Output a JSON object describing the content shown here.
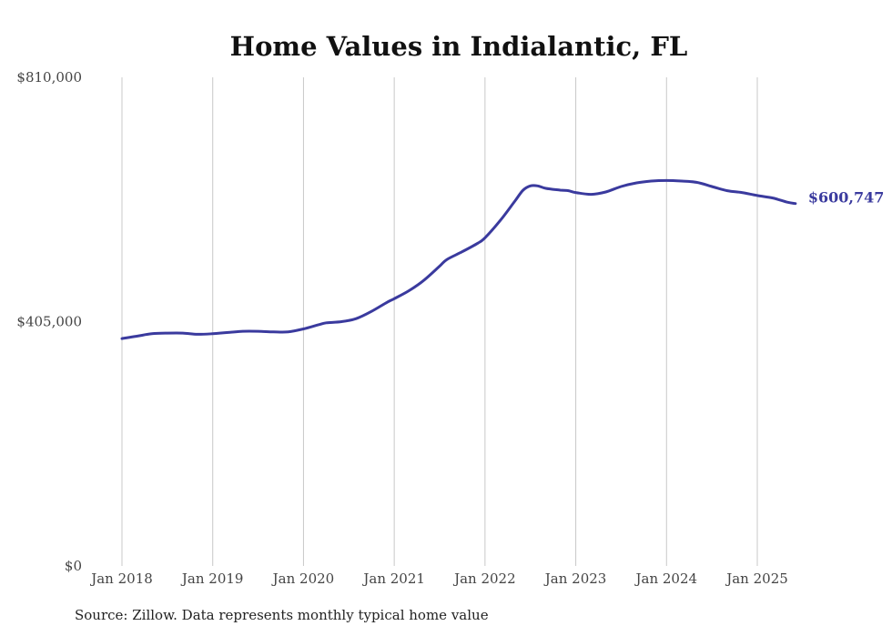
{
  "chart_data": {
    "type": "line",
    "title": "Home Values in Indialantic, FL",
    "xlabel": "",
    "ylabel": "",
    "ylim": [
      0,
      810000
    ],
    "y_ticks": [
      {
        "value": 0,
        "label": "$0"
      },
      {
        "value": 405000,
        "label": "$405,000"
      },
      {
        "value": 810000,
        "label": "$810,000"
      }
    ],
    "x_ticks": [
      {
        "value": 2018,
        "label": "Jan 2018"
      },
      {
        "value": 2019,
        "label": "Jan 2019"
      },
      {
        "value": 2020,
        "label": "Jan 2020"
      },
      {
        "value": 2021,
        "label": "Jan 2021"
      },
      {
        "value": 2022,
        "label": "Jan 2022"
      },
      {
        "value": 2023,
        "label": "Jan 2023"
      },
      {
        "value": 2024,
        "label": "Jan 2024"
      },
      {
        "value": 2025,
        "label": "Jan 2025"
      }
    ],
    "grid": "vertical",
    "series": [
      {
        "color": "#3a3a9e",
        "end_label": "$600,747",
        "points": [
          [
            2018.0,
            377000
          ],
          [
            2018.17,
            381000
          ],
          [
            2018.33,
            385000
          ],
          [
            2018.5,
            386000
          ],
          [
            2018.67,
            386000
          ],
          [
            2018.83,
            384000
          ],
          [
            2019.0,
            385000
          ],
          [
            2019.17,
            387000
          ],
          [
            2019.33,
            389000
          ],
          [
            2019.5,
            389000
          ],
          [
            2019.67,
            388000
          ],
          [
            2019.83,
            388000
          ],
          [
            2020.0,
            393000
          ],
          [
            2020.17,
            400000
          ],
          [
            2020.25,
            403000
          ],
          [
            2020.42,
            405000
          ],
          [
            2020.58,
            410000
          ],
          [
            2020.75,
            422000
          ],
          [
            2020.92,
            437000
          ],
          [
            2021.0,
            443000
          ],
          [
            2021.17,
            457000
          ],
          [
            2021.33,
            474000
          ],
          [
            2021.5,
            497000
          ],
          [
            2021.58,
            508000
          ],
          [
            2021.75,
            521000
          ],
          [
            2021.92,
            535000
          ],
          [
            2022.0,
            544000
          ],
          [
            2022.17,
            573000
          ],
          [
            2022.33,
            605000
          ],
          [
            2022.42,
            623000
          ],
          [
            2022.5,
            630000
          ],
          [
            2022.58,
            630000
          ],
          [
            2022.67,
            626000
          ],
          [
            2022.83,
            623000
          ],
          [
            2022.92,
            622000
          ],
          [
            2023.0,
            619000
          ],
          [
            2023.17,
            616000
          ],
          [
            2023.33,
            620000
          ],
          [
            2023.5,
            629000
          ],
          [
            2023.67,
            635000
          ],
          [
            2023.83,
            638000
          ],
          [
            2024.0,
            639000
          ],
          [
            2024.17,
            638000
          ],
          [
            2024.33,
            636000
          ],
          [
            2024.5,
            629000
          ],
          [
            2024.67,
            622000
          ],
          [
            2024.83,
            619000
          ],
          [
            2025.0,
            614000
          ],
          [
            2025.17,
            610000
          ],
          [
            2025.33,
            603000
          ],
          [
            2025.42,
            600747
          ]
        ]
      }
    ]
  },
  "source_text": "Source: Zillow. Data represents monthly typical home value"
}
